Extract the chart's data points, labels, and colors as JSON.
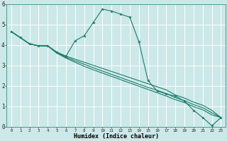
{
  "xlabel": "Humidex (Indice chaleur)",
  "bg_color": "#cce8e8",
  "grid_color": "#ffffff",
  "line_color": "#1a7a6e",
  "xlim": [
    -0.5,
    23.5
  ],
  "ylim": [
    0,
    6
  ],
  "xticks": [
    0,
    1,
    2,
    3,
    4,
    5,
    6,
    7,
    8,
    9,
    10,
    11,
    12,
    13,
    14,
    15,
    16,
    17,
    18,
    19,
    20,
    21,
    22,
    23
  ],
  "yticks": [
    0,
    1,
    2,
    3,
    4,
    5,
    6
  ],
  "line1_x": [
    0,
    1,
    2,
    3,
    4,
    5,
    6,
    7,
    8,
    9,
    10,
    11,
    12,
    13,
    14,
    15,
    16,
    17,
    18,
    19,
    20,
    21,
    22,
    23
  ],
  "line1_y": [
    4.65,
    4.35,
    4.05,
    3.95,
    3.95,
    3.65,
    3.45,
    4.2,
    4.45,
    5.1,
    5.75,
    5.65,
    5.5,
    5.35,
    4.15,
    2.25,
    1.75,
    1.6,
    1.5,
    1.25,
    0.8,
    0.45,
    0.05,
    0.45
  ],
  "line2_x": [
    0,
    1,
    2,
    3,
    4,
    5,
    6,
    7,
    8,
    9,
    10,
    11,
    12,
    13,
    14,
    15,
    16,
    17,
    18,
    19,
    20,
    21,
    22,
    23
  ],
  "line2_y": [
    4.65,
    4.35,
    4.05,
    3.95,
    3.95,
    3.6,
    3.45,
    3.3,
    3.15,
    3.0,
    2.85,
    2.7,
    2.55,
    2.4,
    2.25,
    2.1,
    1.95,
    1.8,
    1.55,
    1.4,
    1.2,
    1.05,
    0.8,
    0.45
  ],
  "line3_x": [
    0,
    1,
    2,
    3,
    4,
    5,
    6,
    7,
    8,
    9,
    10,
    11,
    12,
    13,
    14,
    15,
    16,
    17,
    18,
    19,
    20,
    21,
    22,
    23
  ],
  "line3_y": [
    4.65,
    4.35,
    4.05,
    3.95,
    3.95,
    3.6,
    3.4,
    3.22,
    3.05,
    2.88,
    2.72,
    2.56,
    2.4,
    2.24,
    2.08,
    1.92,
    1.78,
    1.62,
    1.42,
    1.27,
    1.08,
    0.93,
    0.68,
    0.45
  ],
  "line4_x": [
    0,
    1,
    2,
    3,
    4,
    5,
    6,
    7,
    8,
    9,
    10,
    11,
    12,
    13,
    14,
    15,
    16,
    17,
    18,
    19,
    20,
    21,
    22,
    23
  ],
  "line4_y": [
    4.65,
    4.35,
    4.05,
    3.95,
    3.95,
    3.6,
    3.35,
    3.15,
    2.95,
    2.78,
    2.62,
    2.46,
    2.3,
    2.14,
    1.98,
    1.82,
    1.66,
    1.5,
    1.32,
    1.18,
    0.98,
    0.83,
    0.58,
    0.45
  ]
}
